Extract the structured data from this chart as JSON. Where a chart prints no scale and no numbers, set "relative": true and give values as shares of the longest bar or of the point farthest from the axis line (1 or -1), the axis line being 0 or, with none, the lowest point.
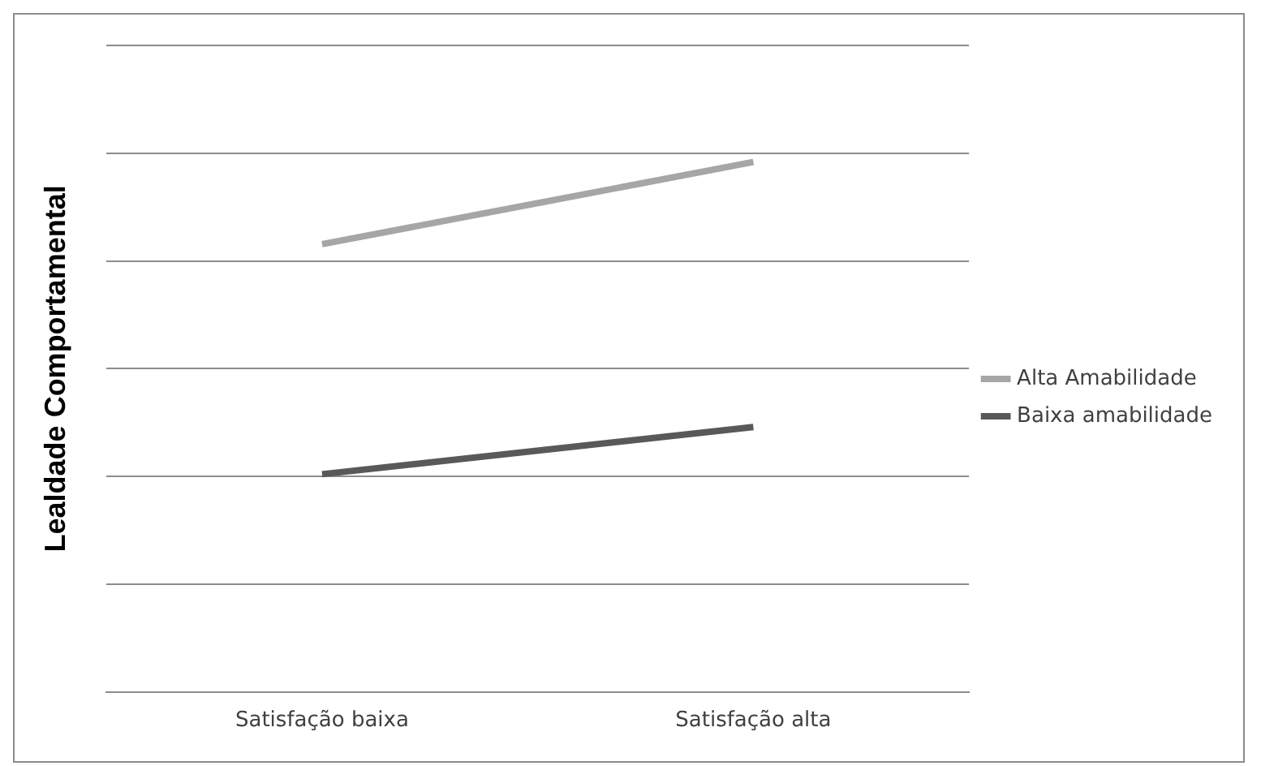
{
  "chart_data": {
    "type": "line",
    "ylabel": "Lealdade Comportamental",
    "categories": [
      "Satisfação baixa",
      "Satisfação alta"
    ],
    "series": [
      {
        "name": "Alta Amabilidade",
        "color": "#a6a6a6",
        "values": [
          0.845,
          1
        ]
      },
      {
        "name": "Baixa amabilidade",
        "color": "#595959",
        "values": [
          0.411,
          0.5
        ]
      }
    ],
    "relative": true,
    "grid": "y",
    "legend": "right",
    "marker": "none",
    "line_style": "solid"
  }
}
